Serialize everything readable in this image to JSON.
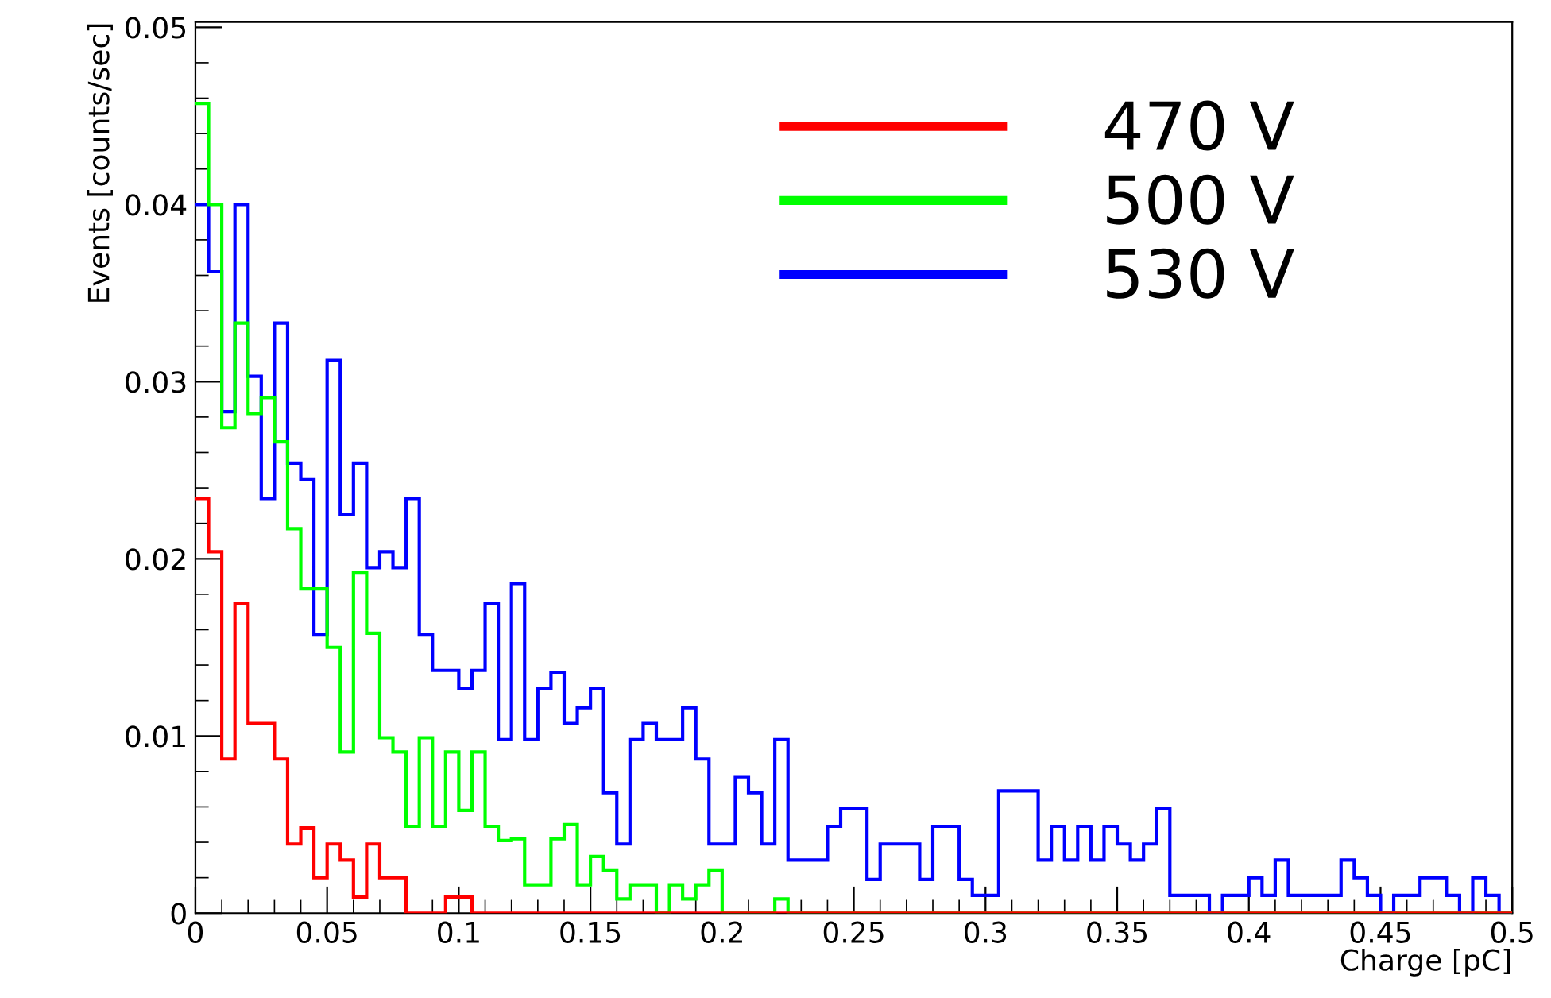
{
  "chart_data": {
    "type": "histogram",
    "xlabel": "Charge [pC]",
    "ylabel": "Events [counts/sec]",
    "bins": [
      0,
      0.005,
      0.01,
      0.015,
      0.02,
      0.025,
      0.03,
      0.035,
      0.04,
      0.045,
      0.05,
      0.055,
      0.06,
      0.065,
      0.07,
      0.075,
      0.08,
      0.085,
      0.09,
      0.095,
      0.1,
      0.105,
      0.11,
      0.115,
      0.12,
      0.125,
      0.13,
      0.135,
      0.14,
      0.145,
      0.15,
      0.155,
      0.16,
      0.165,
      0.17,
      0.175,
      0.18,
      0.185,
      0.19,
      0.195,
      0.2,
      0.205,
      0.21,
      0.215,
      0.22,
      0.225,
      0.23,
      0.235,
      0.24,
      0.245,
      0.25,
      0.255,
      0.26,
      0.265,
      0.27,
      0.275,
      0.28,
      0.285,
      0.29,
      0.295,
      0.3,
      0.305,
      0.31,
      0.315,
      0.32,
      0.325,
      0.33,
      0.335,
      0.34,
      0.345,
      0.35,
      0.355,
      0.36,
      0.365,
      0.37,
      0.375,
      0.38,
      0.385,
      0.39,
      0.395,
      0.4,
      0.405,
      0.41,
      0.415,
      0.42,
      0.425,
      0.43,
      0.435,
      0.44,
      0.445,
      0.45,
      0.455,
      0.46,
      0.465,
      0.47,
      0.475,
      0.48,
      0.485,
      0.49,
      0.495,
      0.5
    ],
    "series": [
      {
        "name": "470 V",
        "color": "#ff0000",
        "values": [
          0.0234,
          0.0204,
          0.0087,
          0.0175,
          0.0107,
          0.0107,
          0.0087,
          0.0039,
          0.0048,
          0.002,
          0.0039,
          0.003,
          0.0009,
          0.0039,
          0.002,
          0.002,
          0,
          0,
          0,
          0.0009,
          0.0009,
          0,
          0,
          0,
          0,
          0,
          0,
          0,
          0,
          0,
          0,
          0,
          0,
          0,
          0,
          0,
          0,
          0,
          0,
          0,
          0,
          0,
          0,
          0,
          0,
          0,
          0,
          0,
          0,
          0,
          0,
          0,
          0,
          0,
          0,
          0,
          0,
          0,
          0,
          0,
          0,
          0,
          0,
          0,
          0,
          0,
          0,
          0,
          0,
          0,
          0,
          0,
          0,
          0,
          0,
          0,
          0,
          0,
          0,
          0,
          0,
          0,
          0,
          0,
          0,
          0,
          0,
          0,
          0,
          0,
          0,
          0,
          0,
          0,
          0,
          0,
          0,
          0,
          0,
          0
        ]
      },
      {
        "name": "500 V",
        "color": "#00ff00",
        "values": [
          0.0457,
          0.04,
          0.0274,
          0.0333,
          0.0282,
          0.0291,
          0.0266,
          0.0217,
          0.0183,
          0.0183,
          0.015,
          0.0091,
          0.0192,
          0.0158,
          0.0099,
          0.0091,
          0.0049,
          0.0099,
          0.0049,
          0.0091,
          0.0058,
          0.0091,
          0.0049,
          0.0041,
          0.0042,
          0.0016,
          0.0016,
          0.0042,
          0.005,
          0.0016,
          0.0032,
          0.0024,
          0.0008,
          0.0016,
          0.0016,
          0,
          0.0016,
          0.0008,
          0.0016,
          0.0024,
          0,
          0,
          0,
          0,
          0.0008,
          0,
          0,
          0,
          0,
          0,
          0,
          0,
          0,
          0,
          0,
          0,
          0,
          0,
          0,
          0,
          0,
          0,
          0,
          0,
          0,
          0,
          0,
          0,
          0,
          0,
          0,
          0,
          0,
          0,
          0,
          0,
          0,
          0,
          0,
          0,
          0,
          0,
          0,
          0,
          0,
          0,
          0,
          0,
          0,
          0,
          0,
          0,
          0,
          0,
          0,
          0,
          0,
          0,
          0,
          0
        ]
      },
      {
        "name": "530 V",
        "color": "#0000ff",
        "values": [
          0.04,
          0.0362,
          0.0283,
          0.04,
          0.0303,
          0.0234,
          0.0333,
          0.0254,
          0.0245,
          0.0157,
          0.0312,
          0.0225,
          0.0254,
          0.0195,
          0.0204,
          0.0195,
          0.0234,
          0.0157,
          0.0137,
          0.0137,
          0.0127,
          0.0137,
          0.0175,
          0.0098,
          0.0186,
          0.0098,
          0.0127,
          0.0136,
          0.0107,
          0.0116,
          0.0127,
          0.0068,
          0.0039,
          0.0098,
          0.0107,
          0.0098,
          0.0098,
          0.0116,
          0.0087,
          0.0039,
          0.0039,
          0.0077,
          0.0068,
          0.0039,
          0.0098,
          0.003,
          0.003,
          0.003,
          0.0049,
          0.0059,
          0.0059,
          0.0019,
          0.0039,
          0.0039,
          0.0039,
          0.0019,
          0.0049,
          0.0049,
          0.0019,
          0.001,
          0.001,
          0.0069,
          0.0069,
          0.0069,
          0.003,
          0.0049,
          0.003,
          0.0049,
          0.003,
          0.0049,
          0.0039,
          0.003,
          0.0039,
          0.0059,
          0.001,
          0.001,
          0.001,
          0,
          0.001,
          0.001,
          0.002,
          0.001,
          0.003,
          0.001,
          0.001,
          0.001,
          0.001,
          0.003,
          0.002,
          0.001,
          0,
          0.001,
          0.001,
          0.002,
          0.002,
          0.001,
          0,
          0.002,
          0.001,
          0
        ]
      }
    ],
    "xlim": [
      0,
      0.5
    ],
    "ylim": [
      0,
      0.0503
    ],
    "xticks": [
      0,
      0.05,
      0.1,
      0.15,
      0.2,
      0.25,
      0.3,
      0.35,
      0.4,
      0.45,
      0.5
    ],
    "yticks": [
      0,
      0.01,
      0.02,
      0.03,
      0.04,
      0.05
    ],
    "legend": "top right",
    "grid": false
  }
}
